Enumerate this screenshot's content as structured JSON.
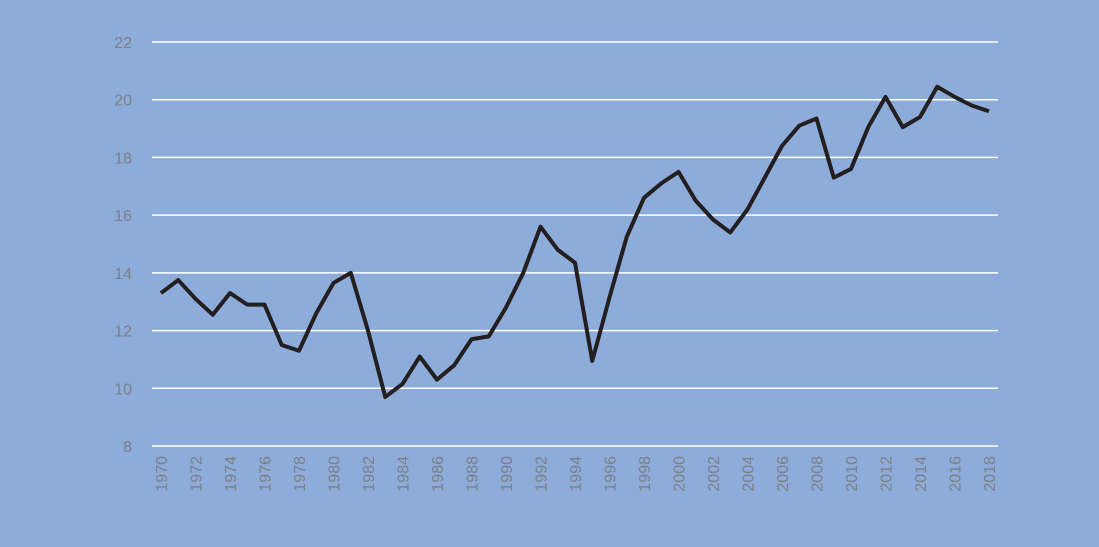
{
  "chart_data": {
    "type": "line",
    "x": [
      1970,
      1971,
      1972,
      1973,
      1974,
      1975,
      1976,
      1977,
      1978,
      1979,
      1980,
      1981,
      1982,
      1983,
      1984,
      1985,
      1986,
      1987,
      1988,
      1989,
      1990,
      1991,
      1992,
      1993,
      1994,
      1995,
      1996,
      1997,
      1998,
      1999,
      2000,
      2001,
      2002,
      2003,
      2004,
      2005,
      2006,
      2007,
      2008,
      2009,
      2010,
      2011,
      2012,
      2013,
      2014,
      2015,
      2016,
      2017,
      2018
    ],
    "series": [
      {
        "color": "#231f20",
        "values": [
          13.3,
          13.75,
          13.1,
          12.55,
          13.3,
          12.9,
          12.9,
          11.5,
          11.3,
          12.6,
          13.65,
          14.0,
          12.0,
          9.7,
          10.15,
          11.1,
          10.3,
          10.8,
          11.7,
          11.8,
          12.8,
          14.0,
          15.6,
          14.8,
          14.35,
          10.95,
          13.15,
          15.25,
          16.6,
          17.1,
          17.5,
          16.5,
          15.85,
          15.4,
          16.2,
          17.3,
          18.4,
          19.1,
          19.35,
          17.3,
          17.6,
          19.05,
          20.1,
          19.05,
          19.4,
          20.45,
          20.1,
          19.8,
          19.6
        ]
      }
    ],
    "xlim": [
      1970,
      2018
    ],
    "xticks": [
      1970,
      1972,
      1974,
      1976,
      1978,
      1980,
      1982,
      1984,
      1986,
      1988,
      1990,
      1992,
      1994,
      1996,
      1998,
      2000,
      2002,
      2004,
      2006,
      2008,
      2010,
      2012,
      2014,
      2016,
      2018
    ],
    "ylim": [
      8,
      22
    ],
    "yticks": [
      8,
      10,
      12,
      14,
      16,
      18,
      20,
      22
    ],
    "grid": true
  }
}
